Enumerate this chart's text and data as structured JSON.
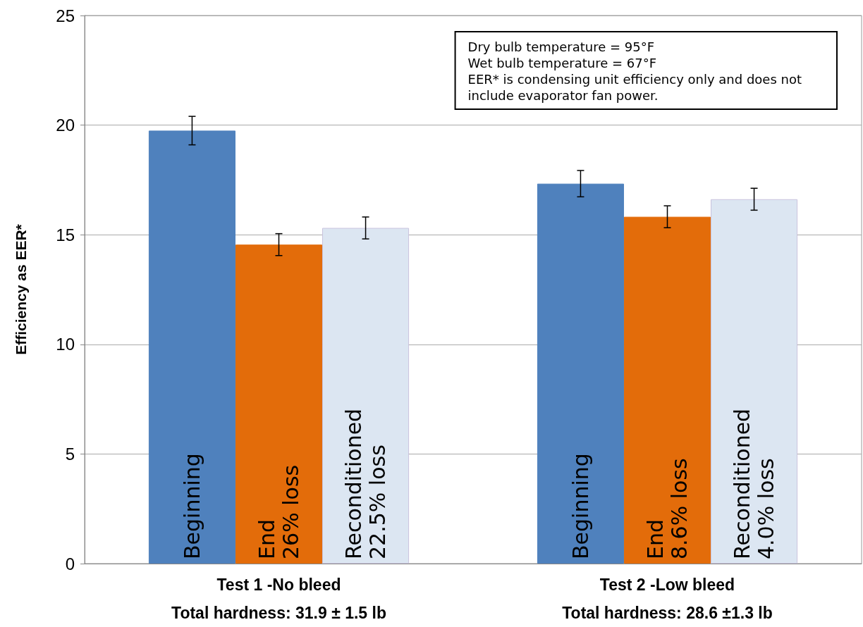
{
  "chart_data": {
    "type": "bar",
    "ylabel": "Efficiency as EER*",
    "categories": [
      "Test 1 -No bleed\nTotal hardness: 31.9 ± 1.5 lb",
      "Test 2 -Low bleed\nTotal hardness: 28.6 ±1.3 lb"
    ],
    "series": [
      {
        "name": "Beginning",
        "color": "#4f81bd",
        "values": [
          19.75,
          17.33
        ],
        "errors": [
          0.65,
          0.6
        ]
      },
      {
        "name": "End",
        "color": "#e36c0a",
        "values": [
          14.55,
          15.82
        ],
        "errors": [
          0.5,
          0.5
        ]
      },
      {
        "name": "Reconditioned",
        "color": "#dce6f2",
        "values": [
          15.31,
          16.62
        ],
        "errors": [
          0.5,
          0.5
        ]
      }
    ],
    "ylim": [
      0,
      25
    ],
    "yticks": [
      0,
      5,
      10,
      15,
      20,
      25
    ],
    "grid": "y",
    "legend": false,
    "annotations": [
      "26% loss",
      "22.5% loss",
      "8.6% loss",
      "4.0% loss",
      "Dry bulb temperature = 95°F\nWet bulb temperature = 67°F\nEER* is condensing unit efficiency only and does not\ninclude evaporator fan power."
    ]
  }
}
